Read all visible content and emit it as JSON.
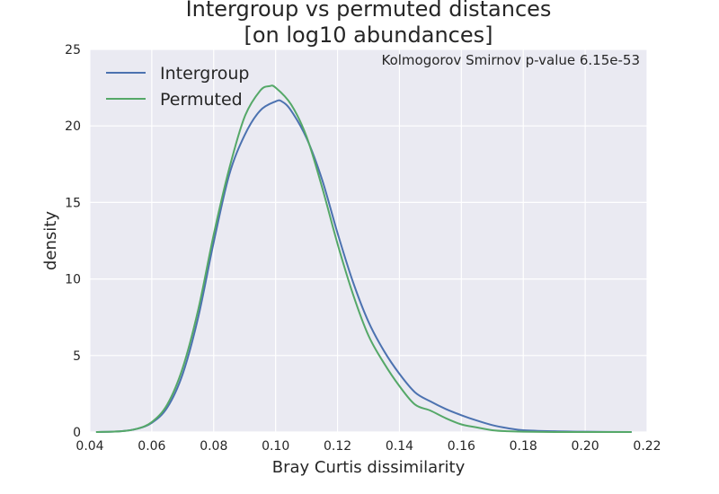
{
  "chart_data": {
    "type": "line",
    "title_lines": [
      "Intergroup vs permuted distances",
      "[on log10 abundances]"
    ],
    "xlabel": "Bray Curtis dissimilarity",
    "ylabel": "density",
    "xlim": [
      0.04,
      0.22
    ],
    "ylim": [
      0,
      25
    ],
    "xticks": [
      0.04,
      0.06,
      0.08,
      0.1,
      0.12,
      0.14,
      0.16,
      0.18,
      0.2,
      0.22
    ],
    "xtick_labels": [
      "0.04",
      "0.06",
      "0.08",
      "0.10",
      "0.12",
      "0.14",
      "0.16",
      "0.18",
      "0.20",
      "0.22"
    ],
    "yticks": [
      0,
      5,
      10,
      15,
      20,
      25
    ],
    "ytick_labels": [
      "0",
      "5",
      "10",
      "15",
      "20",
      "25"
    ],
    "grid": true,
    "legend_position": "top-left",
    "annotation": "Kolmogorov Smirnov p-value 6.15e-53",
    "colors": {
      "background": "#eaeaf2",
      "grid": "#ffffff",
      "Intergroup": "#4c72b0",
      "Permuted": "#55a868"
    },
    "series": [
      {
        "name": "Intergroup",
        "color": "#4c72b0",
        "x": [
          0.042,
          0.05,
          0.055,
          0.06,
          0.065,
          0.07,
          0.075,
          0.08,
          0.085,
          0.09,
          0.095,
          0.1,
          0.102,
          0.105,
          0.11,
          0.115,
          0.12,
          0.125,
          0.13,
          0.135,
          0.14,
          0.145,
          0.15,
          0.155,
          0.16,
          0.165,
          0.17,
          0.175,
          0.18,
          0.19,
          0.2,
          0.215
        ],
        "values": [
          0.0,
          0.05,
          0.2,
          0.6,
          1.6,
          3.8,
          7.5,
          12.4,
          16.8,
          19.4,
          21.0,
          21.6,
          21.6,
          21.0,
          19.2,
          16.5,
          13.0,
          9.8,
          7.2,
          5.3,
          3.8,
          2.6,
          2.0,
          1.5,
          1.1,
          0.75,
          0.45,
          0.25,
          0.12,
          0.05,
          0.02,
          0.0
        ]
      },
      {
        "name": "Permuted",
        "color": "#55a868",
        "x": [
          0.042,
          0.05,
          0.055,
          0.06,
          0.065,
          0.07,
          0.075,
          0.08,
          0.085,
          0.09,
          0.095,
          0.098,
          0.1,
          0.105,
          0.11,
          0.115,
          0.12,
          0.125,
          0.13,
          0.135,
          0.14,
          0.145,
          0.15,
          0.155,
          0.16,
          0.165,
          0.17,
          0.175,
          0.18,
          0.19,
          0.2,
          0.215
        ],
        "values": [
          0.0,
          0.05,
          0.2,
          0.65,
          1.8,
          4.2,
          8.0,
          12.9,
          17.2,
          20.6,
          22.3,
          22.6,
          22.5,
          21.4,
          19.3,
          16.0,
          12.3,
          9.0,
          6.3,
          4.5,
          3.0,
          1.8,
          1.4,
          0.9,
          0.5,
          0.3,
          0.12,
          0.05,
          0.02,
          0.0,
          0.0,
          0.0
        ]
      }
    ]
  }
}
